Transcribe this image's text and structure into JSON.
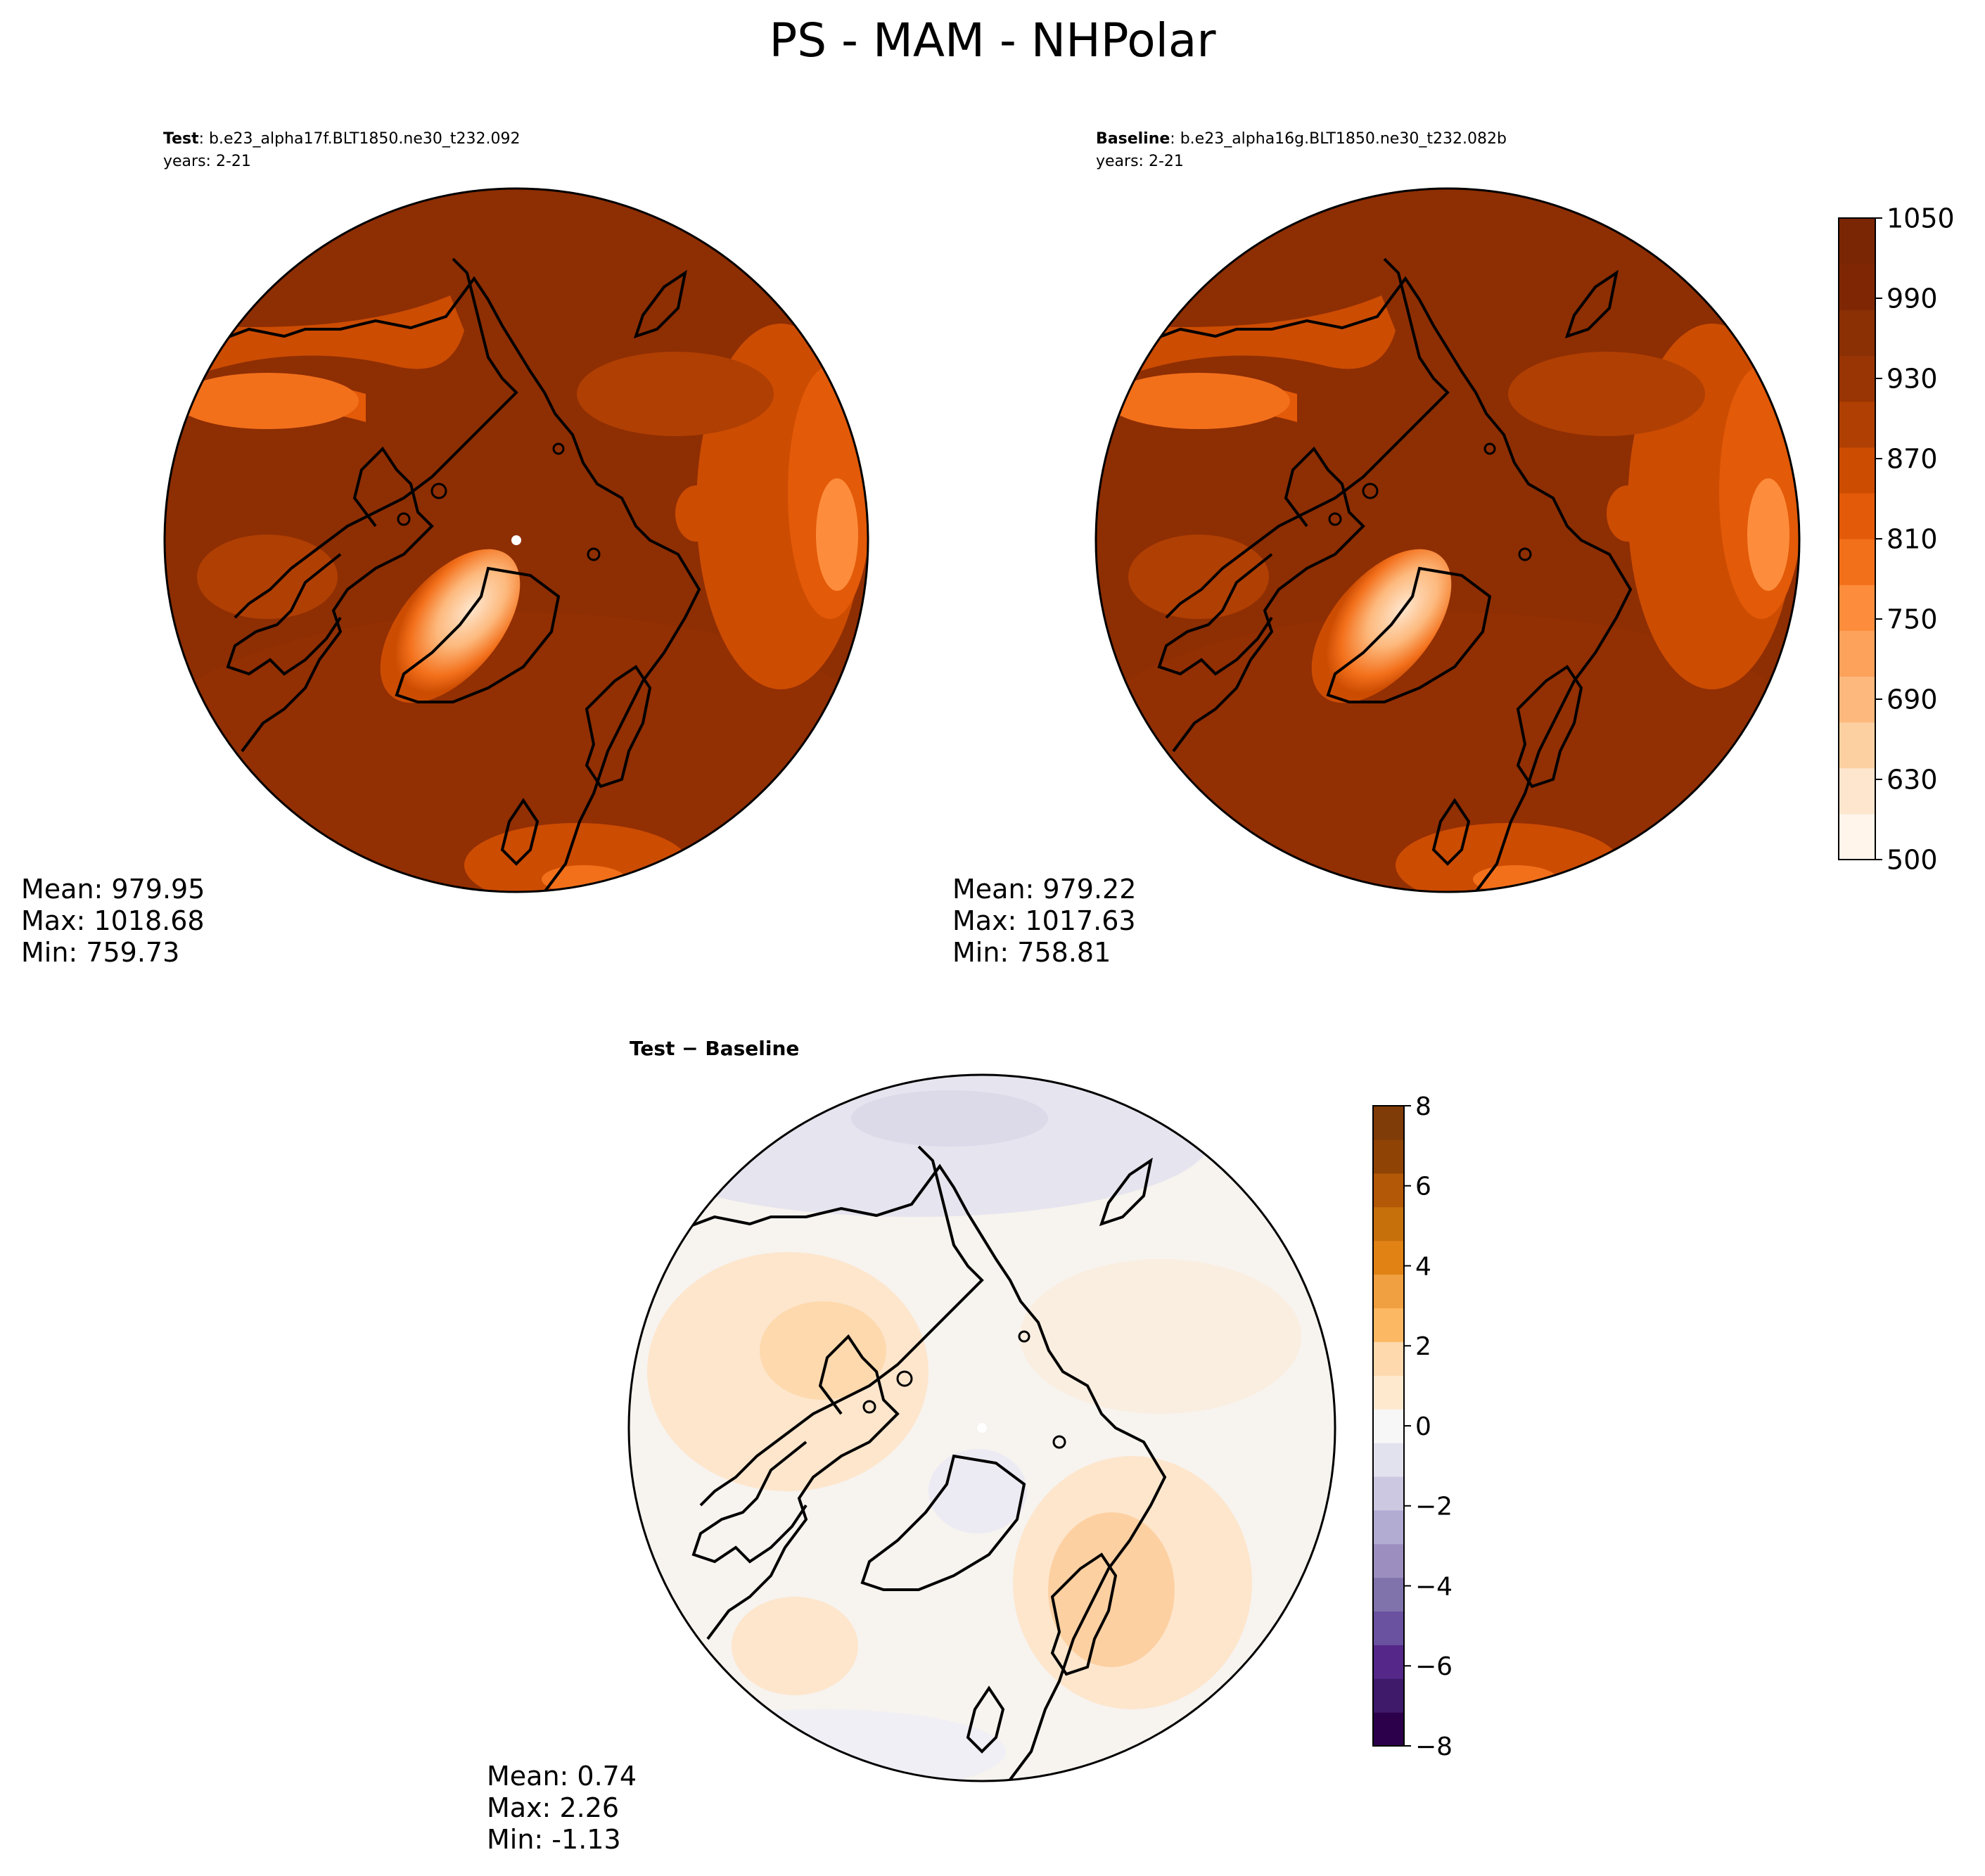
{
  "title": "PS - MAM - NHPolar",
  "panels": {
    "test": {
      "label_bold": "Test",
      "label_rest": ": b.e23_alpha17f.BLT1850.ne30_t232.092",
      "years": "years: 2-21",
      "stats": {
        "mean": "Mean: 979.95",
        "max": "Max: 1018.68",
        "min": "Min: 759.73"
      }
    },
    "baseline": {
      "label_bold": "Baseline",
      "label_rest": ": b.e23_alpha16g.BLT1850.ne30_t232.082b",
      "years": "years: 2-21",
      "stats": {
        "mean": "Mean: 979.22",
        "max": "Max: 1017.63",
        "min": "Min: 758.81"
      }
    },
    "diff": {
      "label": "Test − Baseline",
      "stats": {
        "mean": "Mean:  0.74",
        "max": "Max:  2.26",
        "min": "Min: -1.13"
      }
    }
  },
  "colorbars": {
    "main": {
      "ticks": [
        "500",
        "630",
        "690",
        "750",
        "810",
        "870",
        "930",
        "990",
        "1050"
      ],
      "colors": [
        "#fff5eb",
        "#fee6ce",
        "#fdd0a2",
        "#fdb97d",
        "#fda25b",
        "#fd8d3c",
        "#f3701b",
        "#e35a08",
        "#cc4c02",
        "#b03f03",
        "#993404",
        "#8a3004",
        "#7f2704",
        "#7a2604"
      ]
    },
    "diff": {
      "ticks": [
        "−8",
        "−6",
        "−4",
        "−2",
        "0",
        "2",
        "4",
        "6",
        "8"
      ],
      "colors": [
        "#2d004b",
        "#3f1a6b",
        "#542788",
        "#6a52a0",
        "#8073ac",
        "#9c8fc0",
        "#b2abd2",
        "#cdc8e2",
        "#e2e2ef",
        "#f7f7f7",
        "#fee9cf",
        "#fdd9ad",
        "#fdb863",
        "#f0a040",
        "#e08214",
        "#c6700c",
        "#b35806",
        "#8f4406",
        "#7f3b08"
      ]
    }
  },
  "colors": {
    "land_outline": "#000000",
    "main_base": "#8e2e03",
    "diff_base": "#f7f3ef"
  }
}
